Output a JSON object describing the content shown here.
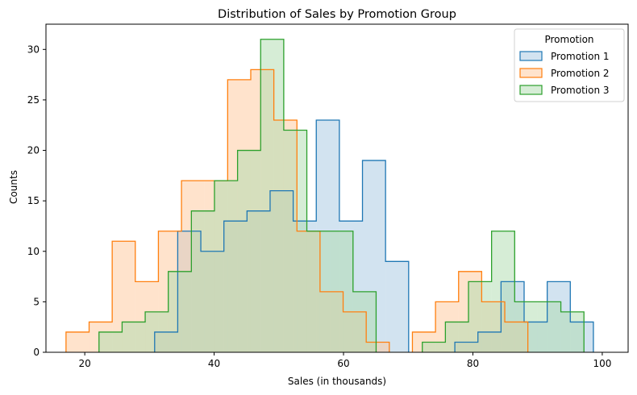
{
  "chart_data": {
    "type": "histogram",
    "title": "Distribution of Sales by Promotion Group",
    "xlabel": "Sales (in thousands)",
    "ylabel": "Counts",
    "xlim": [
      14,
      104
    ],
    "ylim": [
      0,
      32.5
    ],
    "xticks": [
      20,
      40,
      60,
      80,
      100
    ],
    "yticks": [
      0,
      5,
      10,
      15,
      20,
      25,
      30
    ],
    "legend": {
      "title": "Promotion",
      "position": "top-right"
    },
    "series": [
      {
        "name": "Promotion 1",
        "color": "#1f77b4",
        "fill": "#a6c8e2",
        "bin_start": 30.8,
        "bin_width": 3.57,
        "counts": [
          2,
          12,
          10,
          13,
          14,
          16,
          13,
          23,
          13,
          19,
          9,
          0,
          0,
          1,
          2,
          7,
          3,
          7,
          3
        ]
      },
      {
        "name": "Promotion 2",
        "color": "#ff7f0e",
        "fill": "#ffc89a",
        "bin_start": 17.1,
        "bin_width": 3.57,
        "counts": [
          2,
          3,
          11,
          7,
          12,
          17,
          17,
          27,
          28,
          23,
          12,
          6,
          4,
          1,
          0,
          2,
          5,
          8,
          5,
          3
        ]
      },
      {
        "name": "Promotion 3",
        "color": "#2ca02c",
        "fill": "#addcad",
        "bin_start": 22.2,
        "bin_width": 3.57,
        "counts": [
          2,
          3,
          4,
          8,
          14,
          17,
          20,
          31,
          22,
          12,
          12,
          6,
          0,
          0,
          1,
          3,
          7,
          12,
          5,
          5,
          4
        ]
      }
    ]
  }
}
